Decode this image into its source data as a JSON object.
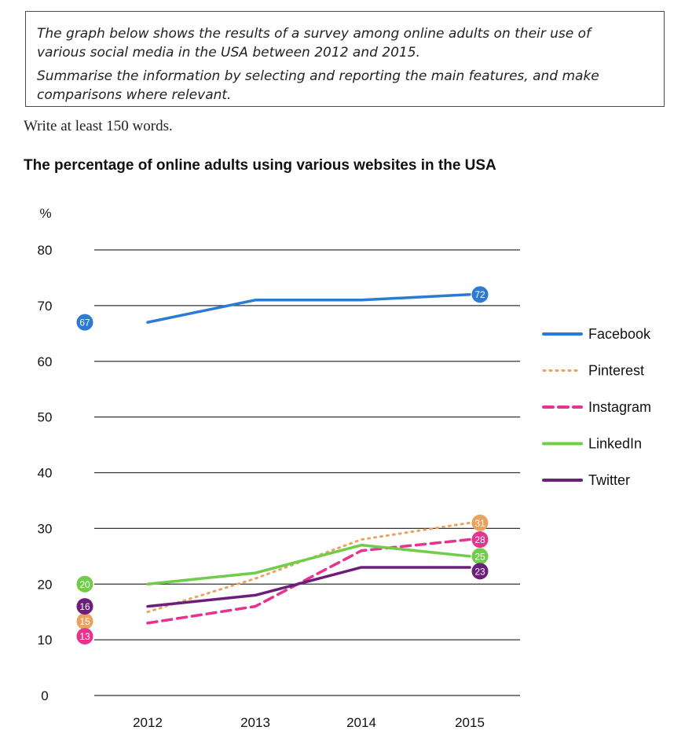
{
  "task": {
    "line1": "The graph below shows the results of a survey among online adults on their use of",
    "line2": "various social media in the USA between 2012 and 2015.",
    "line3": "Summarise the information by selecting and reporting the main features, and make",
    "line4": "comparisons where relevant.",
    "word_count": "Write at least 150 words."
  },
  "chart_data": {
    "type": "line",
    "title": "The percentage of online adults using various websites in the USA",
    "ylabel": "%",
    "xlabel": "",
    "ylim": [
      0,
      80
    ],
    "yticks": [
      0,
      10,
      20,
      30,
      40,
      50,
      60,
      70,
      80
    ],
    "x": [
      "2012",
      "2013",
      "2014",
      "2015"
    ],
    "series": [
      {
        "name": "Facebook",
        "values": [
          67,
          71,
          71,
          72
        ],
        "color": "#2b7ad4",
        "style": "solid",
        "start_label": "67",
        "end_label": "72"
      },
      {
        "name": "Pinterest",
        "values": [
          15,
          21,
          28,
          31
        ],
        "color": "#e8a35f",
        "style": "dotted",
        "start_label": "15",
        "end_label": "31"
      },
      {
        "name": "Instagram",
        "values": [
          13,
          16,
          26,
          28
        ],
        "color": "#e6338d",
        "style": "dashed",
        "start_label": "13",
        "end_label": "28"
      },
      {
        "name": "LinkedIn",
        "values": [
          20,
          22,
          27,
          25
        ],
        "color": "#6fcd4a",
        "style": "solid",
        "start_label": "20",
        "end_label": "25"
      },
      {
        "name": "Twitter",
        "values": [
          16,
          18,
          23,
          23
        ],
        "color": "#6b1f7a",
        "style": "solid",
        "start_label": "16",
        "end_label": "23"
      }
    ],
    "grid": true,
    "legend": "right"
  }
}
